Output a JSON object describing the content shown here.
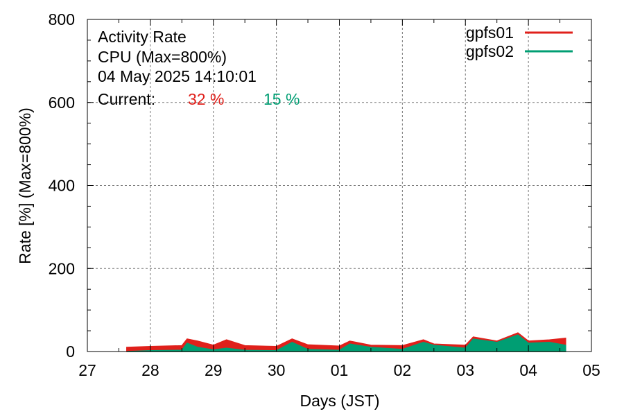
{
  "chart_data": {
    "type": "area",
    "title_lines": [
      "Activity Rate",
      "CPU (Max=800%)",
      "04 May 2025 14:10:01"
    ],
    "current": {
      "label": "Current:",
      "values": [
        {
          "text": "32 %",
          "color": "#e0201b"
        },
        {
          "text": "15 %",
          "color": "#009e73"
        }
      ]
    },
    "xlabel": "Days (JST)",
    "ylabel": "Rate [%]  (Max=800%)",
    "x_ticks": [
      "27",
      "28",
      "29",
      "30",
      "01",
      "02",
      "03",
      "04",
      "05"
    ],
    "y_ticks": [
      0,
      200,
      400,
      600,
      800
    ],
    "ylim": [
      0,
      800
    ],
    "xlim": [
      "2025-04-27",
      "2025-05-05"
    ],
    "grid": true,
    "legend": "top-right",
    "series": [
      {
        "name": "gpfs01",
        "color": "#e0201b",
        "x": [
          "2025-04-27 15:00",
          "2025-04-28 00:00",
          "2025-04-28 12:00",
          "2025-04-28 14:00",
          "2025-04-28 18:00",
          "2025-04-29 00:00",
          "2025-04-29 05:00",
          "2025-04-29 12:00",
          "2025-04-30 00:00",
          "2025-04-30 06:00",
          "2025-04-30 12:00",
          "2025-05-01 00:00",
          "2025-05-01 04:00",
          "2025-05-01 12:00",
          "2025-05-02 00:00",
          "2025-05-02 08:00",
          "2025-05-02 12:00",
          "2025-05-03 00:00",
          "2025-05-03 03:00",
          "2025-05-03 12:00",
          "2025-05-03 20:00",
          "2025-05-04 00:00",
          "2025-05-04 08:00",
          "2025-05-04 14:10"
        ],
        "values": [
          10,
          12,
          14,
          30,
          25,
          15,
          28,
          14,
          12,
          30,
          16,
          13,
          25,
          15,
          14,
          28,
          18,
          15,
          35,
          25,
          45,
          25,
          28,
          32
        ]
      },
      {
        "name": "gpfs02",
        "color": "#009e73",
        "x": [
          "2025-04-27 15:00",
          "2025-04-28 00:00",
          "2025-04-28 12:00",
          "2025-04-28 14:00",
          "2025-04-28 18:00",
          "2025-04-29 00:00",
          "2025-04-29 05:00",
          "2025-04-29 12:00",
          "2025-04-30 00:00",
          "2025-04-30 06:00",
          "2025-04-30 12:00",
          "2025-05-01 00:00",
          "2025-05-01 04:00",
          "2025-05-01 12:00",
          "2025-05-02 00:00",
          "2025-05-02 08:00",
          "2025-05-02 12:00",
          "2025-05-03 00:00",
          "2025-05-03 03:00",
          "2025-05-03 12:00",
          "2025-05-03 20:00",
          "2025-05-04 00:00",
          "2025-05-04 08:00",
          "2025-05-04 14:10"
        ],
        "values": [
          0,
          2,
          3,
          20,
          10,
          4,
          8,
          3,
          2,
          22,
          5,
          3,
          18,
          10,
          5,
          22,
          15,
          8,
          30,
          22,
          40,
          20,
          22,
          15
        ]
      }
    ]
  }
}
